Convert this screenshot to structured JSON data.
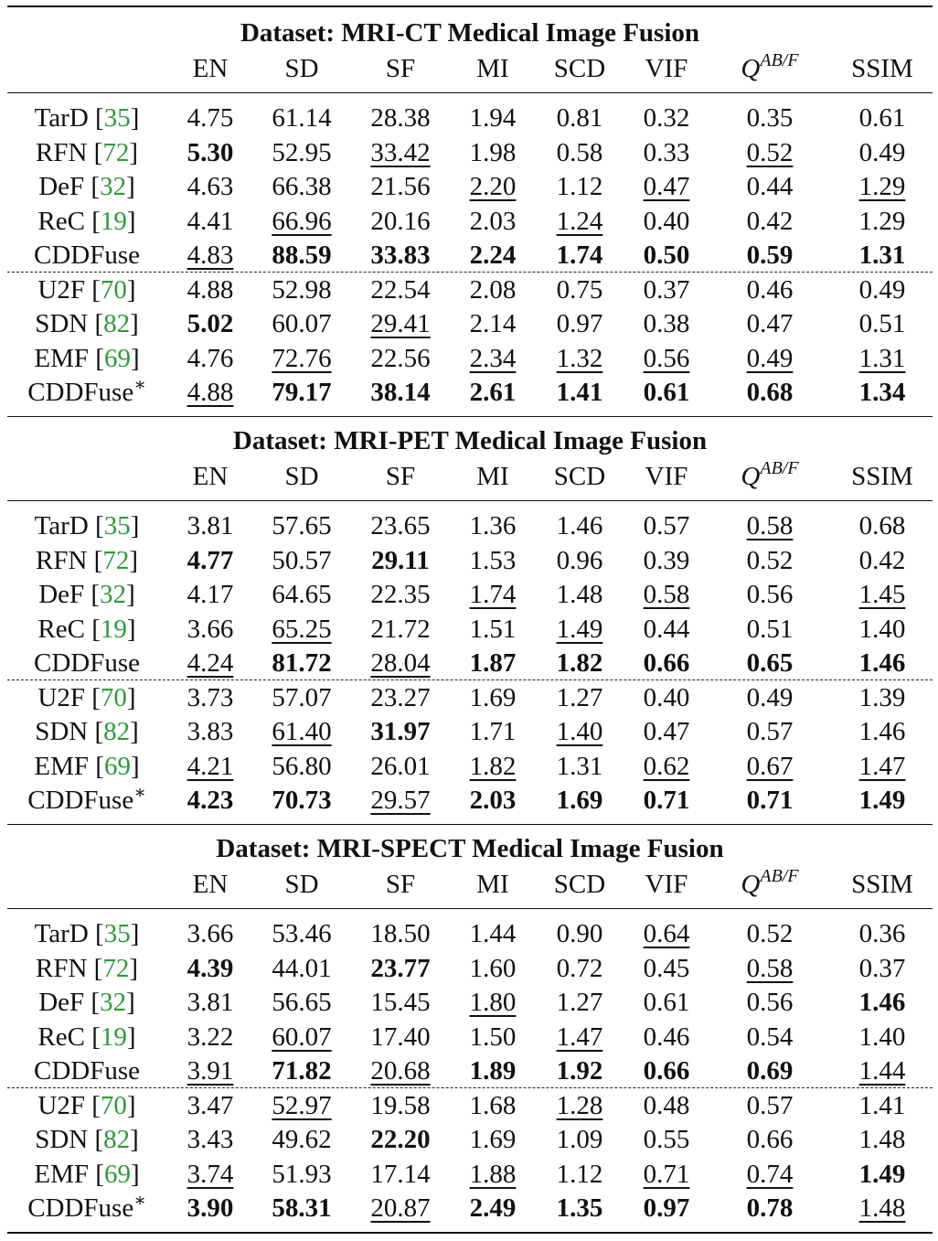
{
  "columns": [
    "EN",
    "SD",
    "SF",
    "MI",
    "SCD",
    "VIF",
    "Q^{AB/F}",
    "SSIM"
  ],
  "q_symbol": {
    "base": "Q",
    "sup": "AB/F"
  },
  "sections": [
    {
      "title": "Dataset: MRI-CT Medical Image Fusion",
      "rows": [
        {
          "name": "TarD",
          "ref": "35",
          "star": false,
          "values": [
            "4.75",
            "61.14",
            "28.38",
            "1.94",
            "0.81",
            "0.32",
            "0.35",
            "0.61"
          ],
          "styles": [
            "",
            "",
            "",
            "",
            "",
            "",
            "",
            ""
          ]
        },
        {
          "name": "RFN",
          "ref": "72",
          "star": false,
          "values": [
            "5.30",
            "52.95",
            "33.42",
            "1.98",
            "0.58",
            "0.33",
            "0.52",
            "0.49"
          ],
          "styles": [
            "b",
            "",
            "u",
            "",
            "",
            "",
            "u",
            ""
          ]
        },
        {
          "name": "DeF",
          "ref": "32",
          "star": false,
          "values": [
            "4.63",
            "66.38",
            "21.56",
            "2.20",
            "1.12",
            "0.47",
            "0.44",
            "1.29"
          ],
          "styles": [
            "",
            "",
            "",
            "u",
            "",
            "u",
            "",
            "u"
          ]
        },
        {
          "name": "ReC",
          "ref": "19",
          "star": false,
          "values": [
            "4.41",
            "66.96",
            "20.16",
            "2.03",
            "1.24",
            "0.40",
            "0.42",
            "1.29"
          ],
          "styles": [
            "",
            "u",
            "",
            "",
            "u",
            "",
            "",
            ""
          ]
        },
        {
          "name": "CDDFuse",
          "ref": "",
          "star": false,
          "values": [
            "4.83",
            "88.59",
            "33.83",
            "2.24",
            "1.74",
            "0.50",
            "0.59",
            "1.31"
          ],
          "styles": [
            "u",
            "b",
            "b",
            "b",
            "b",
            "b",
            "b",
            "b"
          ]
        },
        {
          "name": "U2F",
          "ref": "70",
          "star": false,
          "values": [
            "4.88",
            "52.98",
            "22.54",
            "2.08",
            "0.75",
            "0.37",
            "0.46",
            "0.49"
          ],
          "styles": [
            "",
            "",
            "",
            "",
            "",
            "",
            "",
            ""
          ]
        },
        {
          "name": "SDN",
          "ref": "82",
          "star": false,
          "values": [
            "5.02",
            "60.07",
            "29.41",
            "2.14",
            "0.97",
            "0.38",
            "0.47",
            "0.51"
          ],
          "styles": [
            "b",
            "",
            "u",
            "",
            "",
            "",
            "",
            ""
          ]
        },
        {
          "name": "EMF",
          "ref": "69",
          "star": false,
          "values": [
            "4.76",
            "72.76",
            "22.56",
            "2.34",
            "1.32",
            "0.56",
            "0.49",
            "1.31"
          ],
          "styles": [
            "",
            "u",
            "",
            "u",
            "u",
            "u",
            "u",
            "u"
          ]
        },
        {
          "name": "CDDFuse",
          "ref": "",
          "star": true,
          "values": [
            "4.88",
            "79.17",
            "38.14",
            "2.61",
            "1.41",
            "0.61",
            "0.68",
            "1.34"
          ],
          "styles": [
            "u",
            "b",
            "b",
            "b",
            "b",
            "b",
            "b",
            "b"
          ]
        }
      ]
    },
    {
      "title": "Dataset: MRI-PET Medical Image Fusion",
      "rows": [
        {
          "name": "TarD",
          "ref": "35",
          "star": false,
          "values": [
            "3.81",
            "57.65",
            "23.65",
            "1.36",
            "1.46",
            "0.57",
            "0.58",
            "0.68"
          ],
          "styles": [
            "",
            "",
            "",
            "",
            "",
            "",
            "u",
            ""
          ]
        },
        {
          "name": "RFN",
          "ref": "72",
          "star": false,
          "values": [
            "4.77",
            "50.57",
            "29.11",
            "1.53",
            "0.96",
            "0.39",
            "0.52",
            "0.42"
          ],
          "styles": [
            "b",
            "",
            "b",
            "",
            "",
            "",
            "",
            ""
          ]
        },
        {
          "name": "DeF",
          "ref": "32",
          "star": false,
          "values": [
            "4.17",
            "64.65",
            "22.35",
            "1.74",
            "1.48",
            "0.58",
            "0.56",
            "1.45"
          ],
          "styles": [
            "",
            "",
            "",
            "u",
            "",
            "u",
            "",
            "u"
          ]
        },
        {
          "name": "ReC",
          "ref": "19",
          "star": false,
          "values": [
            "3.66",
            "65.25",
            "21.72",
            "1.51",
            "1.49",
            "0.44",
            "0.51",
            "1.40"
          ],
          "styles": [
            "",
            "u",
            "",
            "",
            "u",
            "",
            "",
            ""
          ]
        },
        {
          "name": "CDDFuse",
          "ref": "",
          "star": false,
          "values": [
            "4.24",
            "81.72",
            "28.04",
            "1.87",
            "1.82",
            "0.66",
            "0.65",
            "1.46"
          ],
          "styles": [
            "u",
            "b",
            "u",
            "b",
            "b",
            "b",
            "b",
            "b"
          ]
        },
        {
          "name": "U2F",
          "ref": "70",
          "star": false,
          "values": [
            "3.73",
            "57.07",
            "23.27",
            "1.69",
            "1.27",
            "0.40",
            "0.49",
            "1.39"
          ],
          "styles": [
            "",
            "",
            "",
            "",
            "",
            "",
            "",
            ""
          ]
        },
        {
          "name": "SDN",
          "ref": "82",
          "star": false,
          "values": [
            "3.83",
            "61.40",
            "31.97",
            "1.71",
            "1.40",
            "0.47",
            "0.57",
            "1.46"
          ],
          "styles": [
            "",
            "u",
            "b",
            "",
            "u",
            "",
            "",
            ""
          ]
        },
        {
          "name": "EMF",
          "ref": "69",
          "star": false,
          "values": [
            "4.21",
            "56.80",
            "26.01",
            "1.82",
            "1.31",
            "0.62",
            "0.67",
            "1.47"
          ],
          "styles": [
            "u",
            "",
            "",
            "u",
            "",
            "u",
            "u",
            "u"
          ]
        },
        {
          "name": "CDDFuse",
          "ref": "",
          "star": true,
          "values": [
            "4.23",
            "70.73",
            "29.57",
            "2.03",
            "1.69",
            "0.71",
            "0.71",
            "1.49"
          ],
          "styles": [
            "b",
            "b",
            "u",
            "b",
            "b",
            "b",
            "b",
            "b"
          ]
        }
      ]
    },
    {
      "title": "Dataset: MRI-SPECT Medical Image Fusion",
      "rows": [
        {
          "name": "TarD",
          "ref": "35",
          "star": false,
          "values": [
            "3.66",
            "53.46",
            "18.50",
            "1.44",
            "0.90",
            "0.64",
            "0.52",
            "0.36"
          ],
          "styles": [
            "",
            "",
            "",
            "",
            "",
            "u",
            "",
            ""
          ]
        },
        {
          "name": "RFN",
          "ref": "72",
          "star": false,
          "values": [
            "4.39",
            "44.01",
            "23.77",
            "1.60",
            "0.72",
            "0.45",
            "0.58",
            "0.37"
          ],
          "styles": [
            "b",
            "",
            "b",
            "",
            "",
            "",
            "u",
            ""
          ]
        },
        {
          "name": "DeF",
          "ref": "32",
          "star": false,
          "values": [
            "3.81",
            "56.65",
            "15.45",
            "1.80",
            "1.27",
            "0.61",
            "0.56",
            "1.46"
          ],
          "styles": [
            "",
            "",
            "",
            "u",
            "",
            "",
            "",
            "b"
          ]
        },
        {
          "name": "ReC",
          "ref": "19",
          "star": false,
          "values": [
            "3.22",
            "60.07",
            "17.40",
            "1.50",
            "1.47",
            "0.46",
            "0.54",
            "1.40"
          ],
          "styles": [
            "",
            "u",
            "",
            "",
            "u",
            "",
            "",
            ""
          ]
        },
        {
          "name": "CDDFuse",
          "ref": "",
          "star": false,
          "values": [
            "3.91",
            "71.82",
            "20.68",
            "1.89",
            "1.92",
            "0.66",
            "0.69",
            "1.44"
          ],
          "styles": [
            "u",
            "b",
            "u",
            "b",
            "b",
            "b",
            "b",
            "u"
          ]
        },
        {
          "name": "U2F",
          "ref": "70",
          "star": false,
          "values": [
            "3.47",
            "52.97",
            "19.58",
            "1.68",
            "1.28",
            "0.48",
            "0.57",
            "1.41"
          ],
          "styles": [
            "",
            "u",
            "",
            "",
            "u",
            "",
            "",
            ""
          ]
        },
        {
          "name": "SDN",
          "ref": "82",
          "star": false,
          "values": [
            "3.43",
            "49.62",
            "22.20",
            "1.69",
            "1.09",
            "0.55",
            "0.66",
            "1.48"
          ],
          "styles": [
            "",
            "",
            "b",
            "",
            "",
            "",
            "",
            ""
          ]
        },
        {
          "name": "EMF",
          "ref": "69",
          "star": false,
          "values": [
            "3.74",
            "51.93",
            "17.14",
            "1.88",
            "1.12",
            "0.71",
            "0.74",
            "1.49"
          ],
          "styles": [
            "u",
            "",
            "",
            "u",
            "",
            "u",
            "u",
            "b"
          ]
        },
        {
          "name": "CDDFuse",
          "ref": "",
          "star": true,
          "values": [
            "3.90",
            "58.31",
            "20.87",
            "2.49",
            "1.35",
            "0.97",
            "0.78",
            "1.48"
          ],
          "styles": [
            "b",
            "b",
            "u",
            "b",
            "b",
            "b",
            "b",
            "u"
          ]
        }
      ]
    }
  ]
}
